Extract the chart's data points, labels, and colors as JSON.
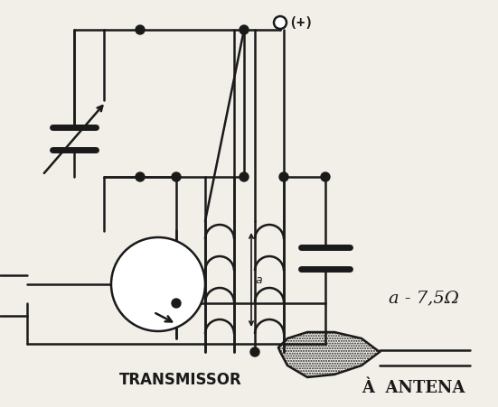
{
  "bg_color": "#f2efe9",
  "line_color": "#1a1a1a",
  "text_transmissor": "TRANSMISSOR",
  "text_antena": "À  ANTENA",
  "text_resistor": "a - 7,5Ω",
  "text_plus": "(+)",
  "text_a": "a",
  "label_fontsize": 11,
  "small_fontsize": 9
}
